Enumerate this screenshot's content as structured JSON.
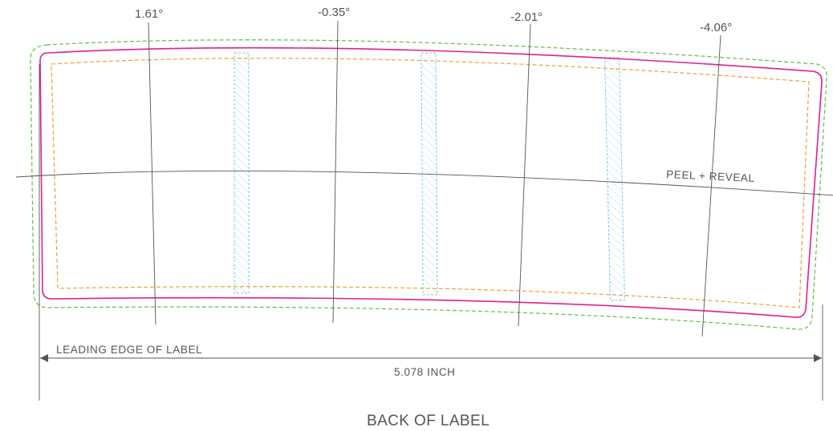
{
  "angles": [
    "1.61°",
    "-0.35°",
    "-2.01°",
    "-4.06°"
  ],
  "peel_reveal": "PEEL + REVEAL",
  "leading_edge": "LEADING EDGE OF LABEL",
  "width_dimension": "5.078 INCH",
  "footer_title": "BACK OF LABEL",
  "colors": {
    "cut_line": "#e0218a",
    "safe_zone": "#f0a030",
    "bleed": "#66bb44",
    "glue_strip": "#7ec8e3",
    "guides": "#555555"
  }
}
